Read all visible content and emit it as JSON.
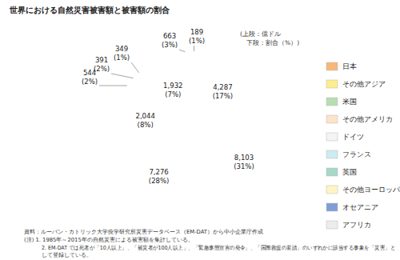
{
  "chart_data": {
    "type": "pie",
    "title": "世界における自然災害被害額と被害額の割合",
    "annotations": [
      "(上段：億ドル",
      "下段：割合（%）)"
    ],
    "categories": [
      "日本",
      "その他アジア",
      "米国",
      "その他アメリカ",
      "ドイツ",
      "フランス",
      "英国",
      "その他ヨーロッパ",
      "オセアニア",
      "アフリカ"
    ],
    "values": [
      4287,
      8103,
      7276,
      2044,
      544,
      391,
      349,
      1932,
      663,
      189
    ],
    "value_labels": [
      "4,287",
      "8,103",
      "7,276",
      "2,044",
      "544",
      "391",
      "349",
      "1,932",
      "663",
      "189"
    ],
    "percentages": [
      17,
      31,
      28,
      8,
      2,
      2,
      1,
      7,
      3,
      1
    ],
    "percentage_labels": [
      "(17%)",
      "(31%)",
      "(28%)",
      "(8%)",
      "(2%)",
      "(2%)",
      "(1%)",
      "(7%)",
      "(3%)",
      "(1%)"
    ],
    "colors": [
      "#f7b77a",
      "#fbee8c",
      "#b8ddb2",
      "#fde3c9",
      "#f4f4f4",
      "#cdebf2",
      "#a7d7c9",
      "#fff5c4",
      "#7f9ed6",
      "#ececec"
    ],
    "data_labels": true,
    "legend": "right",
    "source": "資料：ルーバン・カトリック大学疫学研究所災害データベース（EM-DAT）から中小企業庁作成",
    "notes": [
      "(注) 1. 1985年～2015年の自然災害による被害額を集計している。",
      "2. EM-DAT では死者が「10人以上」、「被災者が100人以上」、「緊急事態宣言の発令」、「国際救援の要請」のいずれかに該当する事象を「災害」と",
      "して登録している。"
    ]
  }
}
